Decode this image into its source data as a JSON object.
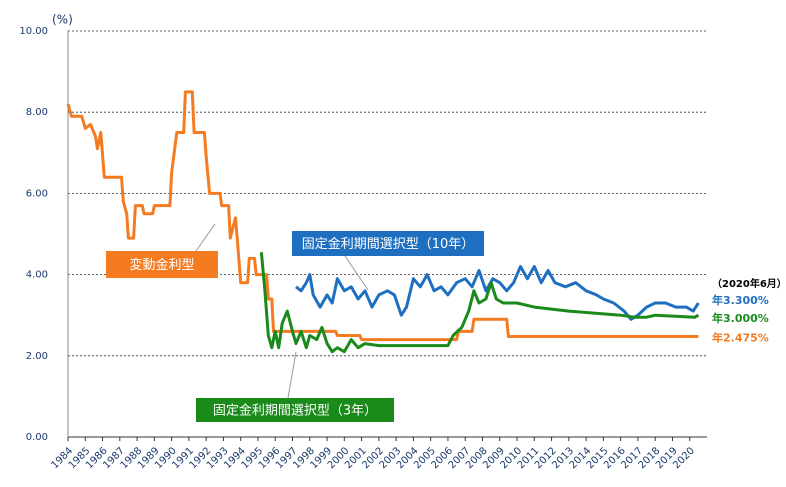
{
  "chart_data": {
    "type": "line",
    "y_unit": "(%)",
    "end_label_title": "（2020年6月）",
    "xlim": [
      1984,
      2021
    ],
    "xticks": [
      1984,
      1985,
      1986,
      1987,
      1988,
      1989,
      1990,
      1991,
      1992,
      1993,
      1994,
      1995,
      1996,
      1997,
      1998,
      1999,
      2000,
      2001,
      2002,
      2003,
      2004,
      2005,
      2006,
      2007,
      2008,
      2009,
      2010,
      2011,
      2012,
      2013,
      2014,
      2015,
      2016,
      2017,
      2018,
      2019,
      2020
    ],
    "ylim": [
      0,
      10
    ],
    "yticks": [
      {
        "value": 0,
        "label": "0.00"
      },
      {
        "value": 2,
        "label": "2.00"
      },
      {
        "value": 4,
        "label": "4.00"
      },
      {
        "value": 6,
        "label": "6.00"
      },
      {
        "value": 8,
        "label": "8.00"
      },
      {
        "value": 10,
        "label": "10.00"
      }
    ],
    "grid": true,
    "series": [
      {
        "name": "変動金利型",
        "color": "#f47b20",
        "end_label": "年2.475%",
        "x": [
          1984.0,
          1984.2,
          1984.8,
          1985.0,
          1985.3,
          1985.6,
          1985.7,
          1985.9,
          1986.1,
          1987.1,
          1987.2,
          1987.4,
          1987.5,
          1987.8,
          1987.9,
          1988.3,
          1988.4,
          1988.9,
          1989.0,
          1989.9,
          1990.0,
          1990.3,
          1990.7,
          1990.8,
          1991.2,
          1991.3,
          1991.9,
          1992.0,
          1992.2,
          1992.8,
          1992.9,
          1993.3,
          1993.4,
          1993.7,
          1993.8,
          1994.0,
          1994.4,
          1994.5,
          1994.8,
          1994.9,
          1995.5,
          1995.6,
          1995.8,
          1995.9,
          1999.5,
          1999.6,
          2000.9,
          2001.0,
          2006.5,
          2006.6,
          2007.4,
          2007.5,
          2009.4,
          2009.5,
          2020.5
        ],
        "values": [
          8.2,
          7.9,
          7.9,
          7.6,
          7.7,
          7.4,
          7.1,
          7.5,
          6.4,
          6.4,
          5.8,
          5.5,
          4.9,
          4.9,
          5.7,
          5.7,
          5.5,
          5.5,
          5.7,
          5.7,
          6.5,
          7.5,
          7.5,
          8.5,
          8.5,
          7.5,
          7.5,
          6.9,
          6.0,
          6.0,
          5.7,
          5.7,
          4.9,
          5.4,
          4.9,
          3.8,
          3.8,
          4.4,
          4.4,
          4.0,
          4.0,
          3.4,
          3.4,
          2.6,
          2.6,
          2.5,
          2.5,
          2.4,
          2.4,
          2.6,
          2.6,
          2.9,
          2.9,
          2.475,
          2.475
        ]
      },
      {
        "name": "固定金利期間選択型（10年）",
        "color": "#1f6fc0",
        "end_label": "年3.300%",
        "x": [
          1997.2,
          1997.5,
          1997.8,
          1998.0,
          1998.2,
          1998.6,
          1999.0,
          1999.3,
          1999.6,
          2000.0,
          2000.4,
          2000.8,
          2001.2,
          2001.6,
          2002.0,
          2002.5,
          2002.9,
          2003.3,
          2003.6,
          2004.0,
          2004.4,
          2004.8,
          2005.2,
          2005.6,
          2006.0,
          2006.5,
          2007.0,
          2007.4,
          2007.8,
          2008.2,
          2008.6,
          2009.0,
          2009.4,
          2009.8,
          2010.2,
          2010.6,
          2011.0,
          2011.4,
          2011.8,
          2012.2,
          2012.8,
          2013.4,
          2014.0,
          2014.6,
          2015.0,
          2015.6,
          2016.2,
          2016.6,
          2017.0,
          2017.5,
          2018.0,
          2018.6,
          2019.2,
          2019.8,
          2020.2,
          2020.5
        ],
        "values": [
          3.7,
          3.6,
          3.8,
          4.0,
          3.5,
          3.2,
          3.5,
          3.3,
          3.9,
          3.6,
          3.7,
          3.4,
          3.6,
          3.2,
          3.5,
          3.6,
          3.5,
          3.0,
          3.2,
          3.9,
          3.7,
          4.0,
          3.6,
          3.7,
          3.5,
          3.8,
          3.9,
          3.7,
          4.1,
          3.6,
          3.9,
          3.8,
          3.6,
          3.8,
          4.2,
          3.9,
          4.2,
          3.8,
          4.1,
          3.8,
          3.7,
          3.8,
          3.6,
          3.5,
          3.4,
          3.3,
          3.1,
          2.9,
          3.0,
          3.2,
          3.3,
          3.3,
          3.2,
          3.2,
          3.1,
          3.3
        ]
      },
      {
        "name": "固定金利期間選択型（3年）",
        "color": "#1a8a1a",
        "end_label": "年3.000%",
        "x": [
          1995.2,
          1995.4,
          1995.6,
          1995.8,
          1996.0,
          1996.2,
          1996.4,
          1996.7,
          1997.0,
          1997.2,
          1997.5,
          1997.8,
          1998.0,
          1998.4,
          1998.7,
          1999.0,
          1999.3,
          1999.6,
          2000.0,
          2000.4,
          2000.8,
          2001.2,
          2002.0,
          2006.0,
          2006.3,
          2006.8,
          2007.2,
          2007.5,
          2007.8,
          2008.2,
          2008.5,
          2008.8,
          2009.2,
          2010.0,
          2011.0,
          2013.0,
          2016.0,
          2016.8,
          2017.5,
          2018.0,
          2020.3,
          2020.5
        ],
        "values": [
          4.55,
          3.6,
          2.5,
          2.2,
          2.6,
          2.2,
          2.8,
          3.1,
          2.6,
          2.3,
          2.6,
          2.2,
          2.5,
          2.4,
          2.7,
          2.3,
          2.1,
          2.2,
          2.1,
          2.4,
          2.2,
          2.3,
          2.25,
          2.25,
          2.5,
          2.7,
          3.1,
          3.6,
          3.3,
          3.4,
          3.8,
          3.4,
          3.3,
          3.3,
          3.2,
          3.1,
          3.0,
          2.95,
          2.95,
          3.0,
          2.95,
          3.0
        ]
      }
    ]
  }
}
